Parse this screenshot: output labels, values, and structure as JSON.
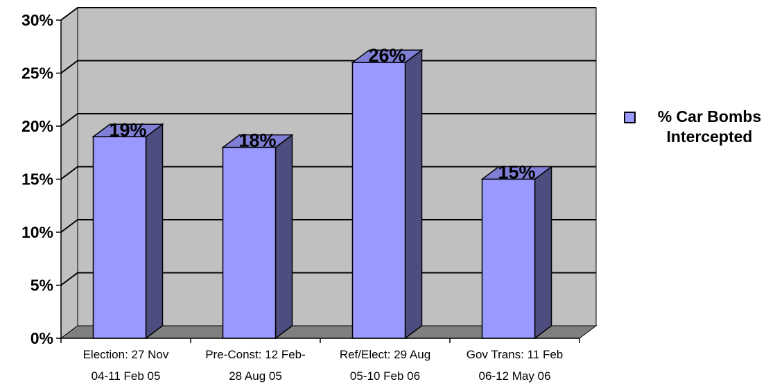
{
  "chart_data": {
    "type": "bar",
    "style": "3d-column",
    "categories": [
      [
        "Election: 27 Nov",
        "04-11 Feb 05"
      ],
      [
        "Pre-Const: 12 Feb-",
        "28 Aug 05"
      ],
      [
        "Ref/Elect: 29 Aug",
        "05-10 Feb 06"
      ],
      [
        "Gov Trans: 11 Feb",
        "06-12 May 06"
      ]
    ],
    "series": [
      {
        "name": "% Car Bombs Intercepted",
        "values": [
          19,
          18,
          26,
          15
        ]
      }
    ],
    "data_labels": [
      "19%",
      "18%",
      "26%",
      "15%"
    ],
    "ylim": [
      0,
      30
    ],
    "yticks": [
      0,
      5,
      10,
      15,
      20,
      25,
      30
    ],
    "ytick_labels": [
      "0%",
      "5%",
      "10%",
      "15%",
      "20%",
      "25%",
      "30%"
    ],
    "grid": true,
    "legend_position": "right",
    "colors": {
      "bar_front": "#9999ff",
      "bar_side": "#4d4d80",
      "bar_top": "#7f7fd6",
      "wall": "#c0c0c0",
      "floor": "#808080"
    }
  },
  "legend": {
    "line1": "% Car Bombs",
    "line2": "Intercepted"
  }
}
